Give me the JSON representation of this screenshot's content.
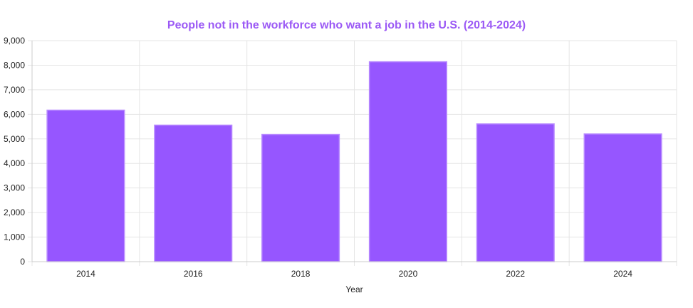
{
  "chart_data": {
    "type": "bar",
    "title": "People not in the workforce who want a job in the U.S. (2014-2024)",
    "xlabel": "Year",
    "ylabel": "",
    "categories": [
      "2014",
      "2016",
      "2018",
      "2020",
      "2022",
      "2024"
    ],
    "values": [
      6170,
      5560,
      5180,
      8140,
      5610,
      5200
    ],
    "ylim": [
      0,
      9000
    ],
    "yticks": [
      0,
      1000,
      2000,
      3000,
      4000,
      5000,
      6000,
      7000,
      8000,
      9000
    ],
    "ytick_labels": [
      "0",
      "1,000",
      "2,000",
      "3,000",
      "4,000",
      "5,000",
      "6,000",
      "7,000",
      "8,000",
      "9,000"
    ],
    "grid": true,
    "legend": "none",
    "colors": {
      "title": "#9b59f5",
      "bar_fill": "#9656ff",
      "bar_stroke": "#b98cff",
      "grid": "#e5e5e5",
      "axis": "#cccccc"
    }
  }
}
